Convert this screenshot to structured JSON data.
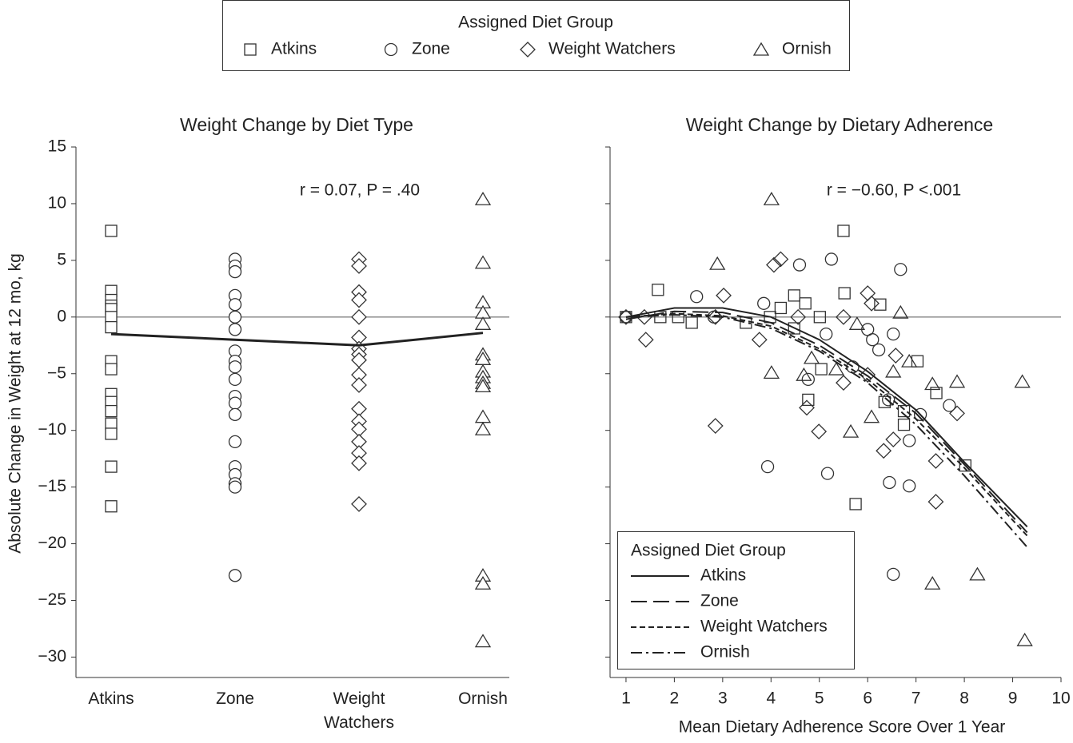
{
  "legend_title": "Assigned Diet Group",
  "y_label": "Absolute Change in Weight at 12 mo, kg",
  "chart_data": [
    {
      "type": "strip",
      "title": "Weight Change by Diet Type",
      "annotation": "r = 0.07, P = .40",
      "categories": [
        "Atkins",
        "Zone",
        "Weight Watchers",
        "Ornish"
      ],
      "ylim": [
        -31.8,
        15
      ],
      "yticks": [
        15,
        10,
        5,
        0,
        {
          "value": -5,
          "label": "−5"
        },
        {
          "value": -10,
          "label": "−10"
        },
        {
          "value": -15,
          "label": "−15"
        },
        {
          "value": -20,
          "label": "−20"
        },
        {
          "value": -25,
          "label": "−25"
        },
        {
          "value": -30,
          "label": "−30"
        }
      ],
      "zero_line": true,
      "series": [
        {
          "name": "Atkins",
          "marker": "square",
          "values": [
            7.6,
            2.3,
            1.5,
            1.0,
            0.7,
            0,
            -0.9,
            -3.9,
            -4.6,
            -6.8,
            -7.5,
            -8.3,
            -9.4,
            -10.3,
            -13.2,
            -16.7
          ]
        },
        {
          "name": "Zone",
          "marker": "circle",
          "values": [
            5.1,
            4.5,
            4.0,
            1.9,
            1.1,
            0,
            -1.1,
            -3.0,
            -3.9,
            -4.4,
            -5.5,
            -7.0,
            -7.6,
            -8.6,
            -11.0,
            -13.2,
            -13.9,
            -14.7,
            -15.0,
            -22.8
          ]
        },
        {
          "name": "Weight Watchers",
          "marker": "diamond",
          "values": [
            5.1,
            4.5,
            2.2,
            1.5,
            0,
            -1.8,
            -2.8,
            -3.3,
            -3.8,
            -5.1,
            -6.0,
            -8.1,
            -9.2,
            -9.9,
            -11.0,
            -12.0,
            -12.9,
            -16.5
          ]
        },
        {
          "name": "Ornish",
          "marker": "triangle",
          "values": [
            10.4,
            4.8,
            1.3,
            0.4,
            -0.6,
            -3.3,
            -3.7,
            -4.8,
            -5.3,
            -5.8,
            -6.1,
            -8.8,
            -9.9,
            -22.8,
            -23.5,
            -28.6
          ]
        }
      ],
      "mean_values": [
        -1.5,
        -2.0,
        -2.5,
        -1.4
      ]
    },
    {
      "type": "scatter",
      "title": "Weight Change by Dietary Adherence",
      "annotation": "r = −0.60, P <.001",
      "x_label": "Mean Dietary Adherence Score Over 1 Year",
      "xlim": [
        0.67,
        10
      ],
      "xticks": [
        1,
        2,
        3,
        4,
        5,
        6,
        7,
        8,
        9,
        10
      ],
      "ylim": [
        -31.8,
        15
      ],
      "yticks": [
        15,
        10,
        5,
        0,
        -5,
        -10,
        -15,
        -20,
        -25,
        -30
      ],
      "zero_line": true,
      "legend": "lower left",
      "series": [
        {
          "marker": "square",
          "x": [
            1.0,
            1.66,
            1.71,
            2.08,
            2.36,
            3.48,
            3.98,
            4.2,
            4.48,
            4.48,
            4.71,
            4.77,
            5.01,
            5.04,
            5.5,
            5.52,
            5.75,
            6.26,
            6.35,
            6.75,
            6.75,
            7.03,
            7.42,
            8.02
          ],
          "y": [
            0,
            2.4,
            0,
            0,
            -0.5,
            -0.5,
            0,
            0.8,
            1.9,
            -1.0,
            1.2,
            -7.3,
            0,
            -4.6,
            7.6,
            2.1,
            -16.5,
            1.1,
            -7.5,
            -8.3,
            -9.5,
            -3.9,
            -6.7,
            -13.1
          ]
        },
        {
          "marker": "circle",
          "x": [
            1.0,
            2.46,
            2.82,
            3.85,
            3.93,
            4.59,
            4.77,
            5.14,
            5.17,
            5.25,
            5.69,
            6.0,
            6.1,
            6.23,
            6.43,
            6.45,
            6.53,
            6.53,
            6.68,
            6.86,
            6.86,
            7.09,
            7.69
          ],
          "y": [
            0,
            1.8,
            0,
            1.2,
            -13.2,
            4.6,
            -5.5,
            -1.5,
            -13.8,
            5.1,
            -4.4,
            -1.1,
            -2.0,
            -2.9,
            -7.3,
            -14.6,
            -1.5,
            -22.7,
            4.2,
            -10.9,
            -14.9,
            -8.6,
            -7.8
          ]
        },
        {
          "marker": "diamond",
          "x": [
            1.0,
            1.38,
            1.41,
            2.85,
            3.02,
            2.85,
            3.76,
            4.06,
            4.2,
            4.56,
            4.74,
            4.99,
            5.5,
            5.5,
            6.0,
            6.08,
            6.0,
            6.33,
            6.53,
            6.58,
            7.41,
            7.41,
            7.85
          ],
          "y": [
            0,
            0,
            -2.0,
            -9.6,
            1.9,
            0,
            -2.0,
            4.6,
            5.1,
            0,
            -8.0,
            -10.1,
            0,
            -5.8,
            2.1,
            1.2,
            -5.1,
            -11.8,
            -10.8,
            -3.4,
            -12.7,
            -16.3,
            -8.5
          ]
        },
        {
          "marker": "triangle",
          "x": [
            2.89,
            4.01,
            4.01,
            4.68,
            4.84,
            5.35,
            5.65,
            5.78,
            6.08,
            6.53,
            6.68,
            6.86,
            7.34,
            7.34,
            7.85,
            8.27,
            9.2,
            9.25
          ],
          "y": [
            4.7,
            10.4,
            -4.9,
            -5.1,
            -3.6,
            -4.6,
            -10.1,
            -0.6,
            -8.8,
            -4.8,
            0.4,
            -3.9,
            -5.9,
            -23.5,
            -5.7,
            -22.7,
            -5.7,
            -28.5
          ]
        }
      ],
      "fits": [
        {
          "name": "Atkins",
          "dash": "none",
          "x": [
            1,
            2,
            3,
            4,
            5,
            6,
            7,
            8,
            9.3
          ],
          "y": [
            0,
            0.8,
            0.8,
            0,
            -2.0,
            -4.8,
            -8.2,
            -12.8,
            -18.5
          ]
        },
        {
          "name": "Zone",
          "dash": "20 8",
          "x": [
            1,
            2,
            3,
            4,
            5,
            6,
            7,
            8,
            9.3
          ],
          "y": [
            -0.2,
            0.5,
            0.4,
            -0.5,
            -2.5,
            -5.2,
            -8.5,
            -13.0,
            -19.0
          ]
        },
        {
          "name": "Weight Watchers",
          "dash": "7 4",
          "x": [
            1,
            2,
            3,
            4,
            5,
            6,
            7,
            8,
            9.3
          ],
          "y": [
            0,
            0.3,
            0.1,
            -0.8,
            -2.8,
            -5.5,
            -9.0,
            -13.3,
            -19.3
          ]
        },
        {
          "name": "Ornish",
          "dash": "14 5 3 5",
          "x": [
            1,
            2,
            3,
            4,
            5,
            6,
            7,
            8,
            9.3
          ],
          "y": [
            0,
            0.2,
            0,
            -1.0,
            -3.0,
            -5.8,
            -9.5,
            -14.0,
            -20.3
          ]
        }
      ]
    }
  ]
}
